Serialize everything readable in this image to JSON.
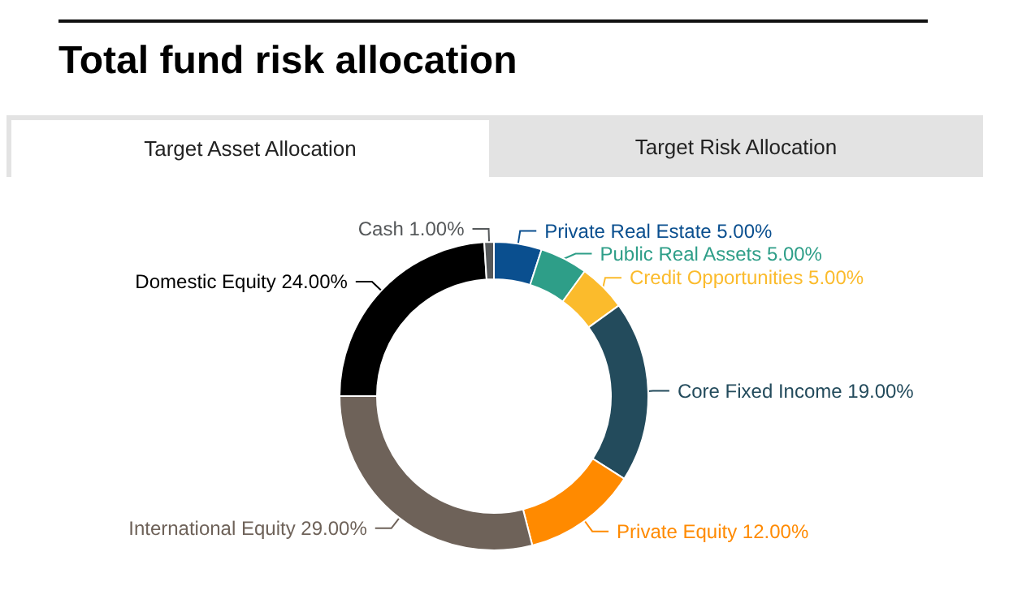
{
  "chart_data": {
    "type": "donut",
    "title": "Total fund risk allocation",
    "annotations": [
      "Target Asset Allocation",
      "Target Risk Allocation"
    ],
    "categories": [
      "Private Real Estate",
      "Public Real Assets",
      "Credit Opportunities",
      "Core Fixed Income",
      "Private Equity",
      "International Equity",
      "Domestic Equity",
      "Cash"
    ],
    "values": [
      5,
      5,
      5,
      19,
      12,
      29,
      24,
      1
    ],
    "value_labels": [
      "5.00%",
      "5.00%",
      "5.00%",
      "19.00%",
      "12.00%",
      "29.00%",
      "24.00%",
      "1.00%"
    ],
    "colors": [
      "#0a4f8f",
      "#2e9e88",
      "#fbbb2c",
      "#234b5c",
      "#ff8a00",
      "#6e6259",
      "#000000",
      "#55585a"
    ],
    "legend": false
  }
}
